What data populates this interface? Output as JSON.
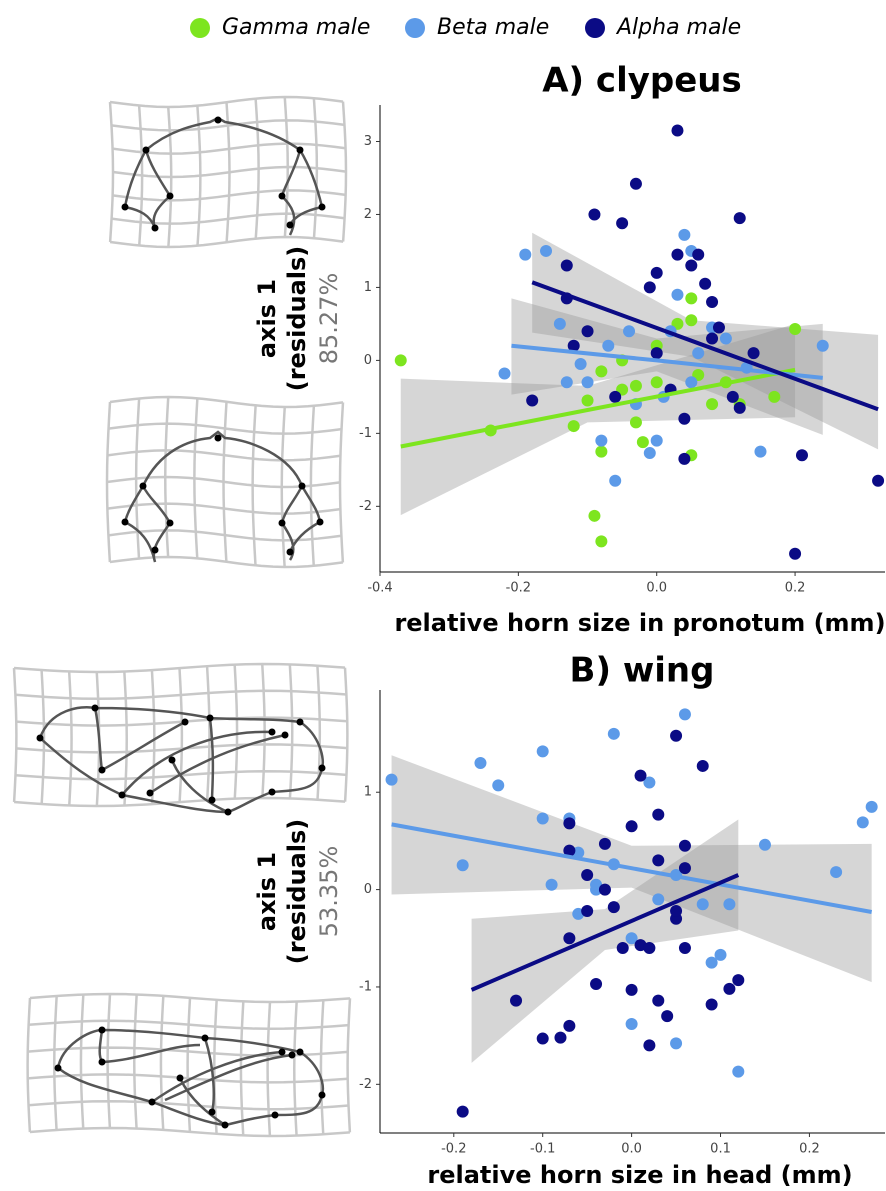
{
  "chart_data": [
    {
      "type": "scatter",
      "title": "A) clypeus",
      "xlabel": "relative horn size in pronotum (mm)",
      "ylabel": "axis 1",
      "ylabel2": "(residuals)",
      "variance": "85.27%",
      "xlim": [
        -0.4,
        0.33
      ],
      "ylim": [
        -2.9,
        3.5
      ],
      "xticks": [
        -0.4,
        -0.2,
        {
          "value": 0,
          "label": "0.0"
        },
        0.2
      ],
      "yticks": [
        -2,
        -1,
        0,
        1,
        2,
        3
      ],
      "series": [
        {
          "name": "Gamma male",
          "color": "#7de51f",
          "x": [
            -0.37,
            -0.24,
            -0.09,
            -0.08,
            -0.08,
            -0.02,
            -0.03,
            0.05,
            0.05,
            0.03,
            0.05,
            0.0,
            -0.1,
            -0.08,
            -0.12,
            -0.05,
            0.08,
            0.12,
            0.17,
            0.2,
            0.0,
            -0.03,
            0.06,
            -0.05,
            0.1
          ],
          "y": [
            0,
            -0.96,
            -2.13,
            -2.48,
            -1.25,
            -1.12,
            -0.85,
            -1.3,
            0.85,
            0.5,
            0.55,
            0.2,
            -0.55,
            -0.15,
            -0.9,
            -0.4,
            -0.6,
            -0.6,
            -0.5,
            0.43,
            -0.3,
            -0.35,
            -0.2,
            0.0,
            -0.3
          ],
          "fit": {
            "x": [
              -0.37,
              -0.1,
              0.2
            ],
            "y": [
              -1.18,
              -0.68,
              -0.13
            ],
            "lower": [
              -2.12,
              -0.85,
              -0.78
            ],
            "upper": [
              -0.25,
              -0.35,
              0.5
            ]
          }
        },
        {
          "name": "Beta male",
          "color": "#5c9ae8",
          "x": [
            -0.22,
            -0.19,
            -0.16,
            -0.14,
            -0.13,
            -0.1,
            -0.08,
            -0.06,
            -0.04,
            -0.03,
            0.0,
            -0.01,
            0.04,
            0.05,
            0.03,
            0.02,
            0.08,
            0.1,
            0.13,
            0.15,
            0.24,
            0.05,
            -0.07,
            0.06,
            0.01,
            -0.11
          ],
          "y": [
            -0.18,
            1.45,
            1.5,
            0.5,
            -0.3,
            -0.3,
            -1.1,
            -1.65,
            0.4,
            -0.6,
            -1.1,
            -1.27,
            1.72,
            1.5,
            0.9,
            0.4,
            0.45,
            0.3,
            -0.1,
            -1.25,
            0.2,
            -0.3,
            0.2,
            0.1,
            -0.5,
            -0.05
          ],
          "fit": {
            "x": [
              -0.21,
              0.0,
              0.24
            ],
            "y": [
              0.2,
              0.0,
              -0.24
            ],
            "lower": [
              -0.47,
              -0.15,
              -1.02
            ],
            "upper": [
              0.85,
              0.3,
              0.5
            ]
          }
        },
        {
          "name": "Alpha male",
          "color": "#0b0b85",
          "x": [
            -0.18,
            -0.13,
            -0.13,
            -0.1,
            -0.09,
            -0.05,
            -0.03,
            0.03,
            0.03,
            0.05,
            0.06,
            0.07,
            0.08,
            0.12,
            0.0,
            -0.01,
            0.08,
            0.09,
            0.11,
            0.12,
            0.2,
            0.21,
            0.32,
            0.04,
            0.04,
            -0.12,
            -0.06,
            0.0,
            0.02,
            0.14
          ],
          "y": [
            -0.55,
            0.85,
            1.3,
            0.4,
            2.0,
            1.88,
            2.42,
            3.15,
            1.45,
            1.3,
            1.45,
            1.05,
            0.8,
            1.95,
            1.2,
            1.0,
            0.3,
            0.45,
            -0.5,
            -0.65,
            -2.65,
            -1.3,
            -1.65,
            -1.35,
            -0.8,
            0.2,
            -0.5,
            0.1,
            -0.4,
            0.1
          ],
          "fit": {
            "x": [
              -0.18,
              0.05,
              0.32
            ],
            "y": [
              1.07,
              0.27,
              -0.67
            ],
            "lower": [
              0.38,
              0.05,
              -1.22
            ],
            "upper": [
              1.75,
              0.55,
              0.35
            ]
          }
        }
      ]
    },
    {
      "type": "scatter",
      "title": "B) wing",
      "xlabel": "relative horn size in head (mm)",
      "ylabel": "axis 1",
      "ylabel2": "(residuals)",
      "variance": "53.35%",
      "xlim": [
        -0.283,
        0.285
      ],
      "ylim": [
        -2.5,
        2.05
      ],
      "xticks": [
        -0.2,
        -0.1,
        {
          "value": 0,
          "label": "0.0"
        },
        0.1,
        0.2
      ],
      "yticks": [
        -2,
        -1,
        0,
        1
      ],
      "series": [
        {
          "name": "Beta male",
          "color": "#5c9ae8",
          "x": [
            -0.27,
            -0.19,
            -0.17,
            -0.15,
            -0.1,
            -0.09,
            -0.1,
            -0.07,
            -0.06,
            -0.04,
            -0.02,
            -0.02,
            0.0,
            0.02,
            0.06,
            0.05,
            0.09,
            0.1,
            0.12,
            0.15,
            0.23,
            0.26,
            0.27,
            0.05,
            0.0,
            -0.06,
            -0.04,
            0.08,
            0.11,
            0.03
          ],
          "y": [
            1.13,
            0.25,
            1.3,
            1.07,
            1.42,
            0.05,
            0.73,
            0.73,
            0.38,
            0.05,
            1.6,
            0.26,
            -0.5,
            1.1,
            1.8,
            0.15,
            -0.75,
            -0.67,
            -1.87,
            0.46,
            0.18,
            0.69,
            0.85,
            -1.58,
            -1.38,
            -0.25,
            0.0,
            -0.15,
            -0.15,
            -0.1
          ],
          "fit": {
            "x": [
              -0.27,
              0.0,
              0.27
            ],
            "y": [
              0.67,
              0.22,
              -0.23
            ],
            "lower": [
              -0.05,
              0.02,
              -0.95
            ],
            "upper": [
              1.38,
              0.45,
              0.47
            ]
          }
        },
        {
          "name": "Alpha male",
          "color": "#0b0b85",
          "x": [
            -0.19,
            -0.13,
            -0.1,
            -0.08,
            -0.07,
            -0.07,
            -0.07,
            -0.07,
            -0.05,
            -0.05,
            -0.04,
            -0.03,
            -0.02,
            -0.01,
            0.0,
            0.0,
            0.01,
            0.01,
            0.02,
            0.02,
            0.03,
            0.03,
            0.04,
            0.05,
            0.05,
            0.06,
            0.06,
            0.08,
            0.09,
            0.11,
            0.12,
            0.05,
            0.06,
            -0.03,
            0.03
          ],
          "y": [
            -2.28,
            -1.14,
            -1.53,
            -1.52,
            -1.4,
            0.68,
            0.4,
            -0.5,
            0.15,
            -0.22,
            -0.97,
            0.47,
            -0.18,
            -0.6,
            0.65,
            -1.03,
            1.17,
            -0.57,
            -1.6,
            -0.6,
            -1.14,
            0.77,
            -1.3,
            -0.3,
            1.58,
            0.45,
            -0.6,
            1.27,
            -1.18,
            -1.02,
            -0.93,
            -0.22,
            0.22,
            0.0,
            0.3
          ],
          "fit": {
            "x": [
              -0.18,
              -0.03,
              0.12
            ],
            "y": [
              -1.03,
              -0.44,
              0.15
            ],
            "lower": [
              -1.78,
              -0.62,
              -0.42
            ],
            "upper": [
              -0.3,
              -0.2,
              0.72
            ]
          }
        }
      ]
    }
  ]
}
